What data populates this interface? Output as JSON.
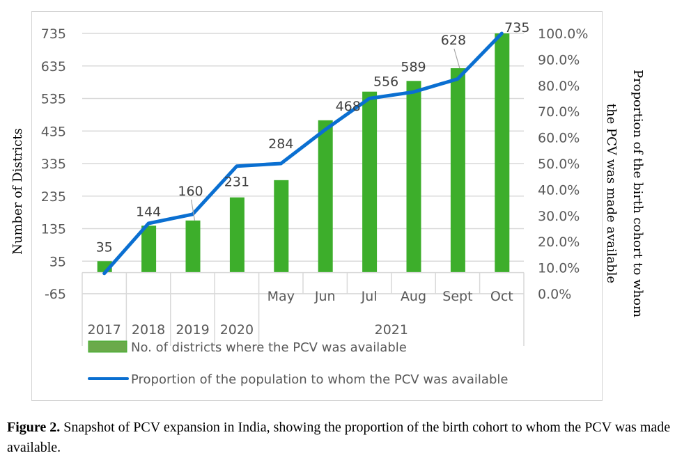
{
  "chart_data": {
    "type": "bar+line",
    "categories": [
      "2017",
      "2018",
      "2019",
      "2020",
      "May",
      "Jun",
      "Jul",
      "Aug",
      "Sept",
      "Oct"
    ],
    "category_groups": [
      {
        "label": "2017",
        "members": [
          "2017"
        ]
      },
      {
        "label": "2018",
        "members": [
          "2018"
        ]
      },
      {
        "label": "2019",
        "members": [
          "2019"
        ]
      },
      {
        "label": "2020",
        "members": [
          "2020"
        ]
      },
      {
        "label": "2021",
        "members": [
          "May",
          "Jun",
          "Jul",
          "Aug",
          "Sept",
          "Oct"
        ]
      }
    ],
    "series": [
      {
        "name": "No. of districts where the PCV was available",
        "type": "bar",
        "axis": "left",
        "color": "#3dae2b",
        "values": [
          35,
          144,
          160,
          231,
          284,
          468,
          556,
          589,
          628,
          735
        ],
        "data_labels": [
          "35",
          "144",
          "160",
          "231",
          "284",
          "468",
          "556",
          "589",
          "628",
          "735"
        ]
      },
      {
        "name": "Proportion of the population to whom the PCV was available",
        "type": "line",
        "axis": "right",
        "color": "#0a6fd1",
        "values": [
          7.8,
          27.0,
          30.5,
          49.0,
          50.0,
          63.0,
          75.0,
          77.5,
          82.5,
          100.0
        ]
      }
    ],
    "left_axis": {
      "label": "Number of Districts",
      "ticks": [
        "735",
        "635",
        "535",
        "435",
        "335",
        "235",
        "135",
        "35",
        "-65"
      ],
      "range": [
        -65,
        735
      ]
    },
    "right_axis": {
      "label": "Proportion of the birth cohort to whom the PCV was made available",
      "label_lines": [
        "Proportion of the birth cohort to whom",
        "the PCV was made available"
      ],
      "ticks": [
        "100.0%",
        "90.0%",
        "80.0%",
        "70.0%",
        "60.0%",
        "50.0%",
        "40.0%",
        "30.0%",
        "20.0%",
        "10.0%",
        "0.0%"
      ],
      "range": [
        0,
        100
      ]
    },
    "grid": true,
    "legend_position": "bottom"
  },
  "caption": {
    "label": "Figure 2.",
    "text": " Snapshot of PCV expansion in India, showing the proportion of the birth cohort to whom the PCV was made available."
  }
}
